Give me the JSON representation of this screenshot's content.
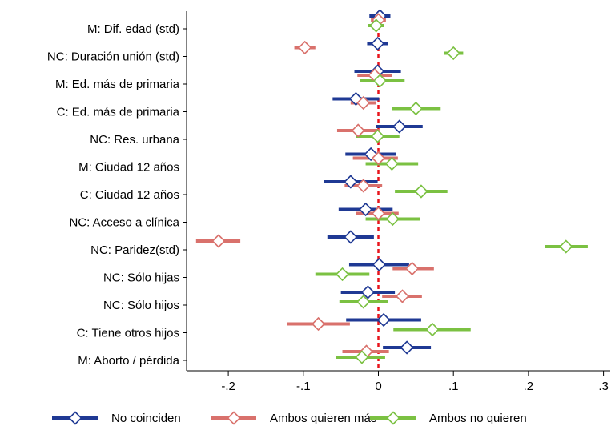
{
  "chart_data": {
    "type": "scatter",
    "subtype": "coefficient-plot-with-confidence-intervals",
    "orientation": "horizontal",
    "xlim": [
      -0.25,
      0.3
    ],
    "x_ticks": [
      -0.2,
      -0.1,
      0,
      0.1,
      0.2,
      0.3
    ],
    "x_tick_labels": [
      "-.2",
      "-.1",
      "0",
      ".1",
      ".2",
      ".3"
    ],
    "reference_line": {
      "x": 0,
      "color": "#e8141b",
      "style": "dashed"
    },
    "grid": false,
    "legend_position": "bottom",
    "categories": [
      "M: Dif. edad (std)",
      "NC: Duración unión (std)",
      "M: Ed. más de primaria",
      "C: Ed. más de primaria",
      "NC: Res. urbana",
      "M: Ciudad 12 años",
      "C: Ciudad 12 años",
      "NC: Acceso a clínica",
      "NC: Paridez(std)",
      "NC: Sólo hijas",
      "NC: Sólo hijos",
      "C: Tiene otros hijos",
      "M: Aborto / pérdida"
    ],
    "series": [
      {
        "name": "No coinciden",
        "color": "#1f3994",
        "marker": "diamond-open",
        "estimate": [
          0.002,
          -0.001,
          -0.001,
          -0.03,
          0.028,
          -0.01,
          -0.037,
          -0.017,
          -0.037,
          0.001,
          -0.014,
          0.007,
          0.038
        ],
        "lo": [
          -0.012,
          -0.015,
          -0.032,
          -0.061,
          -0.003,
          -0.044,
          -0.073,
          -0.053,
          -0.068,
          -0.039,
          -0.05,
          -0.043,
          0.006
        ],
        "hi": [
          0.016,
          0.013,
          0.03,
          0.001,
          0.059,
          0.024,
          -0.001,
          0.019,
          -0.006,
          0.041,
          0.022,
          0.057,
          0.07
        ]
      },
      {
        "name": "Ambos quieren más",
        "color": "#d9716c",
        "marker": "diamond-open",
        "estimate": [
          0.0,
          -0.098,
          -0.005,
          -0.02,
          -0.027,
          0.0,
          -0.02,
          0.0,
          -0.213,
          0.045,
          0.032,
          -0.08,
          -0.016
        ],
        "lo": [
          -0.01,
          -0.112,
          -0.028,
          -0.037,
          -0.055,
          -0.034,
          -0.045,
          -0.03,
          -0.243,
          0.019,
          0.005,
          -0.122,
          -0.048
        ],
        "hi": [
          0.01,
          -0.084,
          0.018,
          -0.003,
          0.001,
          0.026,
          0.005,
          0.027,
          -0.184,
          0.074,
          0.058,
          -0.038,
          0.014
        ]
      },
      {
        "name": "Ambos no quieren",
        "color": "#7bc142",
        "marker": "diamond-open",
        "estimate": [
          -0.003,
          0.1,
          0.002,
          0.05,
          -0.001,
          0.018,
          0.057,
          0.019,
          0.25,
          -0.048,
          -0.02,
          0.072,
          -0.022
        ],
        "lo": [
          -0.014,
          0.087,
          -0.024,
          0.018,
          -0.03,
          -0.017,
          0.022,
          -0.017,
          0.222,
          -0.084,
          -0.052,
          0.02,
          -0.057
        ],
        "hi": [
          0.008,
          0.113,
          0.035,
          0.083,
          0.028,
          0.053,
          0.092,
          0.056,
          0.279,
          -0.012,
          0.013,
          0.123,
          0.009
        ]
      }
    ]
  }
}
